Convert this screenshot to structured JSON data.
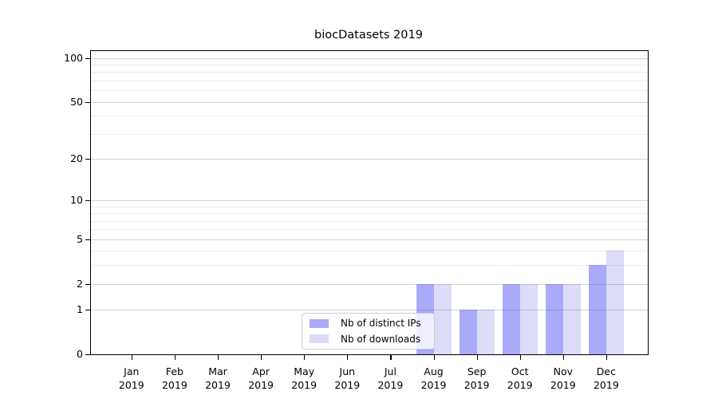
{
  "chart_data": {
    "type": "bar",
    "title": "biocDatasets 2019",
    "categories": [
      "Jan",
      "Feb",
      "Mar",
      "Apr",
      "May",
      "Jun",
      "Jul",
      "Aug",
      "Sep",
      "Oct",
      "Nov",
      "Dec"
    ],
    "x_tick_year": "2019",
    "series": [
      {
        "name": "Nb of distinct IPs",
        "color": "rgba(74,74,242,0.47)",
        "color_on_white": "#aaaaf9",
        "values": [
          0,
          0,
          0,
          0,
          0,
          0,
          0,
          2,
          1,
          2,
          2,
          3
        ]
      },
      {
        "name": "Nb of downloads",
        "color": "rgba(80,80,225,0.20)",
        "color_on_white": "#dcdcf9",
        "values": [
          0,
          0,
          0,
          0,
          0,
          0,
          0,
          2,
          1,
          2,
          2,
          4
        ]
      }
    ],
    "y_axis": {
      "scale": "log1p",
      "major_ticks": [
        0,
        1,
        2,
        5,
        10,
        20,
        50,
        100
      ],
      "minor_gridlines": [
        3,
        4,
        6,
        7,
        8,
        9,
        30,
        40,
        60,
        70,
        80,
        90
      ],
      "ylim_top_value": 112
    },
    "grid": {
      "major_color": "#d4d4d4",
      "minor_color": "#ececec",
      "enabled": true
    },
    "legend": {
      "position": "lower center",
      "items": [
        {
          "label": "Nb of distinct IPs"
        },
        {
          "label": "Nb of downloads"
        }
      ]
    },
    "axis_color": "#000000",
    "background_color": "#ffffff"
  }
}
